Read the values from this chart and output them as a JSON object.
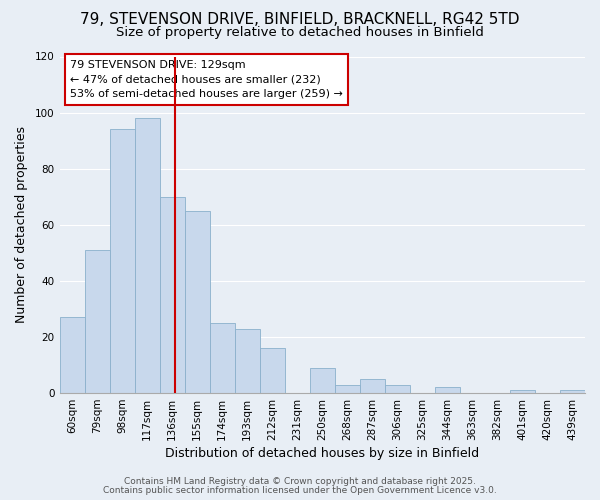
{
  "title": "79, STEVENSON DRIVE, BINFIELD, BRACKNELL, RG42 5TD",
  "subtitle": "Size of property relative to detached houses in Binfield",
  "xlabel": "Distribution of detached houses by size in Binfield",
  "ylabel": "Number of detached properties",
  "bar_labels": [
    "60sqm",
    "79sqm",
    "98sqm",
    "117sqm",
    "136sqm",
    "155sqm",
    "174sqm",
    "193sqm",
    "212sqm",
    "231sqm",
    "250sqm",
    "268sqm",
    "287sqm",
    "306sqm",
    "325sqm",
    "344sqm",
    "363sqm",
    "382sqm",
    "401sqm",
    "420sqm",
    "439sqm"
  ],
  "bar_values": [
    27,
    51,
    94,
    98,
    70,
    65,
    25,
    23,
    16,
    0,
    9,
    3,
    5,
    3,
    0,
    2,
    0,
    0,
    1,
    0,
    1
  ],
  "bar_color": "#c8d8ec",
  "bar_edge_color": "#8ab0cc",
  "vline_color": "#cc0000",
  "ylim": [
    0,
    120
  ],
  "yticks": [
    0,
    20,
    40,
    60,
    80,
    100,
    120
  ],
  "annotation_title": "79 STEVENSON DRIVE: 129sqm",
  "annotation_line1": "← 47% of detached houses are smaller (232)",
  "annotation_line2": "53% of semi-detached houses are larger (259) →",
  "annotation_box_facecolor": "#ffffff",
  "annotation_box_edgecolor": "#cc0000",
  "footer1": "Contains HM Land Registry data © Crown copyright and database right 2025.",
  "footer2": "Contains public sector information licensed under the Open Government Licence v3.0.",
  "background_color": "#e8eef5",
  "plot_background": "#e8eef5",
  "title_fontsize": 11,
  "subtitle_fontsize": 9.5,
  "xlabel_fontsize": 9,
  "ylabel_fontsize": 9,
  "tick_fontsize": 7.5,
  "annotation_fontsize": 8,
  "footer_fontsize": 6.5,
  "grid_color": "#ffffff",
  "spine_color": "#aaaaaa"
}
